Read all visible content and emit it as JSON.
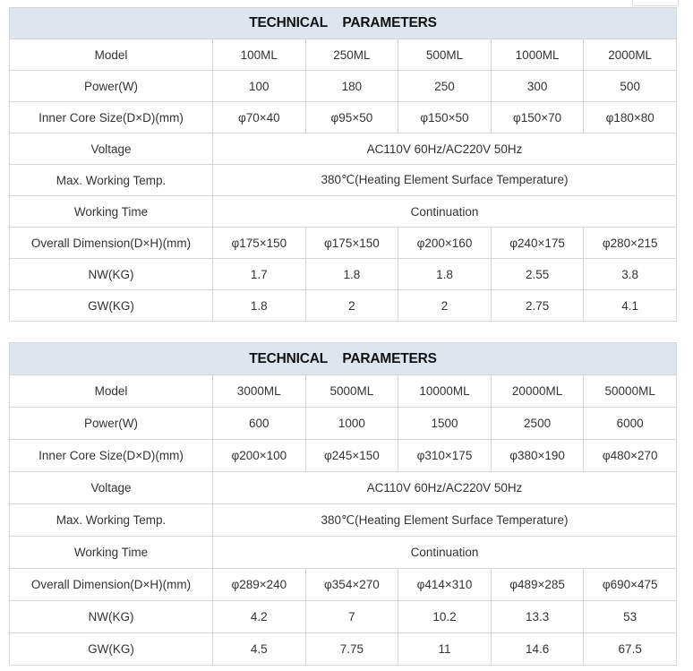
{
  "tables": [
    {
      "title": "TECHNICAL    PARAMETERS",
      "rows": [
        {
          "label": "Model",
          "values": [
            "100ML",
            "250ML",
            "500ML",
            "1000ML",
            "2000ML"
          ]
        },
        {
          "label": "Power(W)",
          "values": [
            "100",
            "180",
            "250",
            "300",
            "500"
          ]
        },
        {
          "label": "Inner Core Size(D×D)(mm)",
          "values": [
            "φ70×40",
            "φ95×50",
            "φ150×50",
            "φ150×70",
            "φ180×80"
          ]
        },
        {
          "label": "Voltage",
          "merged": "AC110V 60Hz/AC220V 50Hz"
        },
        {
          "label": "Max. Working Temp.",
          "merged": "380℃(Heating Element Surface Temperature)"
        },
        {
          "label": "Working Time",
          "merged": "Continuation"
        },
        {
          "label": "Overall Dimension(D×H)(mm)",
          "values": [
            "φ175×150",
            "φ175×150",
            "φ200×160",
            "φ240×175",
            "φ280×215"
          ]
        },
        {
          "label": "NW(KG)",
          "values": [
            "1.7",
            "1.8",
            "1.8",
            "2.55",
            "3.8"
          ]
        },
        {
          "label": "GW(KG)",
          "values": [
            "1.8",
            "2",
            "2",
            "2.75",
            "4.1"
          ]
        }
      ]
    },
    {
      "title": "TECHNICAL    PARAMETERS",
      "rows": [
        {
          "label": "Model",
          "values": [
            "3000ML",
            "5000ML",
            "10000ML",
            "20000ML",
            "50000ML"
          ]
        },
        {
          "label": "Power(W)",
          "values": [
            "600",
            "1000",
            "1500",
            "2500",
            "6000"
          ]
        },
        {
          "label": "Inner Core Size(D×D)(mm)",
          "values": [
            "φ200×100",
            "φ245×150",
            "φ310×175",
            "φ380×190",
            "φ480×270"
          ]
        },
        {
          "label": "Voltage",
          "merged": "AC110V 60Hz/AC220V 50Hz"
        },
        {
          "label": "Max. Working Temp.",
          "merged": "380℃(Heating Element Surface Temperature)"
        },
        {
          "label": "Working Time",
          "merged": "Continuation"
        },
        {
          "label": "Overall Dimension(D×H)(mm)",
          "values": [
            "φ289×240",
            "φ354×270",
            "φ414×310",
            "φ489×285",
            "φ690×475"
          ]
        },
        {
          "label": "NW(KG)",
          "values": [
            "4.2",
            "7",
            "10.2",
            "13.3",
            "53"
          ]
        },
        {
          "label": "GW(KG)",
          "values": [
            "4.5",
            "7.75",
            "11",
            "14.6",
            "67.5"
          ]
        }
      ]
    }
  ],
  "colors": {
    "header_bg": "#dde5ef",
    "border": "#d6d6d6"
  }
}
